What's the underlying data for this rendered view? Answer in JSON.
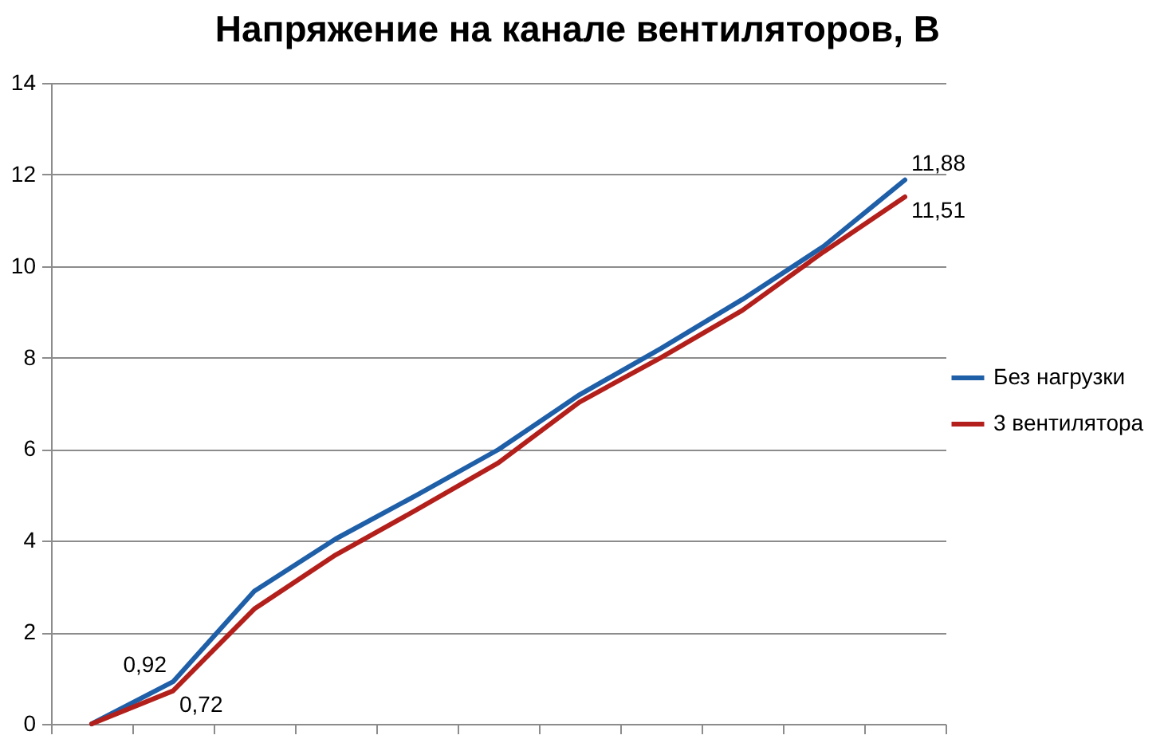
{
  "chart_data": {
    "type": "line",
    "title": "Напряжение на канале вентиляторов, В",
    "categories": [
      null,
      null,
      null,
      null,
      null,
      null,
      null,
      null,
      null,
      null,
      null
    ],
    "series": [
      {
        "name": "Без нагрузки",
        "color": "#1f5fa8",
        "values": [
          0,
          0.92,
          2.9,
          4.04,
          5.0,
          5.99,
          7.19,
          8.2,
          9.27,
          10.43,
          11.88
        ],
        "value_labels": [
          null,
          "0,92",
          null,
          null,
          null,
          null,
          null,
          null,
          null,
          null,
          "11,88"
        ]
      },
      {
        "name": "3 вентилятора",
        "color": "#b3201c",
        "values": [
          0,
          0.72,
          2.51,
          3.69,
          4.68,
          5.7,
          7.03,
          8.0,
          9.03,
          10.31,
          11.51
        ],
        "value_labels": [
          null,
          "0,72",
          null,
          null,
          null,
          null,
          null,
          null,
          null,
          null,
          "11,51"
        ]
      }
    ],
    "ylim": [
      0,
      14
    ],
    "yticks": [
      0,
      2,
      4,
      6,
      8,
      10,
      12,
      14
    ],
    "grid": "y",
    "legend": "right"
  }
}
